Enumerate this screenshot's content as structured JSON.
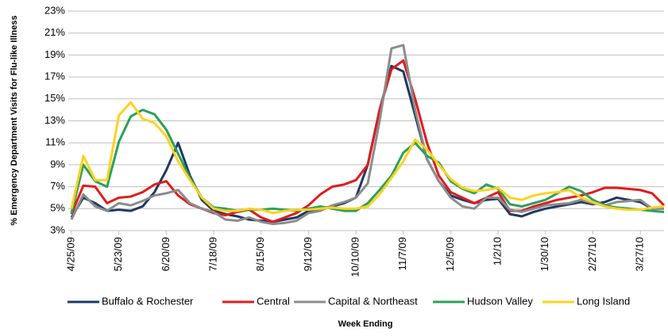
{
  "chart_data": {
    "type": "line",
    "y_label": "% Emergency Department Visits for Flu-like Illness",
    "x_label": "Week Ending",
    "categories": [
      "4/25/09",
      null,
      null,
      null,
      "5/23/09",
      null,
      null,
      null,
      "6/20/09",
      null,
      null,
      null,
      "7/18/09",
      null,
      null,
      null,
      "8/15/09",
      null,
      null,
      null,
      "9/12/09",
      null,
      null,
      null,
      "10/10/09",
      null,
      null,
      null,
      "11/7/09",
      null,
      null,
      null,
      "12/5/09",
      null,
      null,
      null,
      "1/2/10",
      null,
      null,
      null,
      "1/30/10",
      null,
      null,
      null,
      "2/27/10",
      null,
      null,
      null,
      "3/27/10",
      null,
      null
    ],
    "ylim": [
      3,
      23
    ],
    "yticks": [
      {
        "value": 3,
        "label": "3%"
      },
      {
        "value": 5,
        "label": "5%"
      },
      {
        "value": 7,
        "label": "7%"
      },
      {
        "value": 9,
        "label": "9%"
      },
      {
        "value": 11,
        "label": "11%"
      },
      {
        "value": 13,
        "label": "13%"
      },
      {
        "value": 15,
        "label": "15%"
      },
      {
        "value": 17,
        "label": "17%"
      },
      {
        "value": 19,
        "label": "19%"
      },
      {
        "value": 21,
        "label": "21%"
      },
      {
        "value": 23,
        "label": "23%"
      }
    ],
    "grid": true,
    "series": [
      {
        "name": "Buffalo & Rochester",
        "color": "#1f3864",
        "values": [
          4.2,
          6.0,
          5.5,
          4.8,
          4.9,
          4.8,
          5.2,
          6.5,
          8.5,
          11.0,
          8.0,
          5.8,
          4.8,
          4.5,
          4.3,
          4.0,
          3.9,
          3.8,
          4.0,
          4.2,
          4.8,
          5.0,
          5.2,
          5.5,
          6.0,
          9.0,
          14.0,
          18.0,
          17.5,
          13.5,
          9.5,
          7.5,
          6.2,
          5.8,
          5.5,
          5.8,
          5.9,
          4.5,
          4.3,
          4.7,
          5.0,
          5.2,
          5.4,
          5.6,
          5.4,
          5.6,
          6.0,
          5.8,
          5.6,
          5.0,
          5.0
        ]
      },
      {
        "name": "Central",
        "color": "#e31a1c",
        "values": [
          4.5,
          7.1,
          7.0,
          5.5,
          6.0,
          6.1,
          6.5,
          7.2,
          7.5,
          6.2,
          5.4,
          5.0,
          4.6,
          4.4,
          4.7,
          4.9,
          4.2,
          3.8,
          4.2,
          4.6,
          5.3,
          6.3,
          7.0,
          7.2,
          7.6,
          9.0,
          14.0,
          17.7,
          18.5,
          15.0,
          11.0,
          8.0,
          6.5,
          6.0,
          5.5,
          6.0,
          6.5,
          4.8,
          4.8,
          5.2,
          5.5,
          5.8,
          6.0,
          6.2,
          6.5,
          6.9,
          6.9,
          6.8,
          6.7,
          6.4,
          5.3
        ]
      },
      {
        "name": "Capital & Northeast",
        "color": "#8c8c8c",
        "values": [
          4.0,
          6.3,
          5.2,
          4.8,
          5.5,
          5.3,
          5.7,
          6.2,
          6.4,
          6.7,
          5.5,
          5.0,
          4.7,
          4.0,
          3.9,
          4.2,
          3.8,
          3.6,
          3.7,
          3.9,
          4.6,
          4.8,
          5.3,
          5.6,
          6.0,
          7.3,
          13.0,
          19.6,
          19.9,
          14.0,
          9.5,
          7.5,
          6.0,
          5.2,
          5.0,
          6.0,
          6.0,
          4.9,
          4.7,
          5.0,
          5.3,
          5.4,
          5.5,
          5.8,
          5.5,
          5.3,
          5.6,
          5.7,
          5.8,
          5.0,
          5.0
        ]
      },
      {
        "name": "Hudson Valley",
        "color": "#2ca05a",
        "values": [
          4.6,
          9.0,
          7.5,
          7.0,
          11.1,
          13.4,
          14.0,
          13.6,
          12.2,
          10.0,
          7.8,
          6.0,
          5.1,
          5.0,
          4.8,
          4.9,
          4.9,
          5.0,
          4.9,
          4.8,
          5.0,
          5.2,
          5.0,
          4.8,
          4.8,
          5.5,
          6.7,
          8.0,
          10.1,
          11.0,
          9.8,
          9.2,
          7.5,
          6.8,
          6.4,
          7.2,
          6.8,
          5.4,
          5.2,
          5.5,
          5.8,
          6.4,
          7.0,
          6.6,
          5.8,
          5.3,
          5.1,
          5.0,
          4.9,
          4.8,
          4.7
        ]
      },
      {
        "name": "Long Island",
        "color": "#ffd21f",
        "values": [
          5.0,
          9.8,
          7.6,
          7.6,
          13.5,
          14.7,
          13.2,
          12.8,
          11.6,
          9.3,
          7.6,
          6.0,
          5.0,
          4.8,
          4.8,
          5.0,
          4.9,
          4.6,
          4.8,
          4.9,
          4.9,
          5.0,
          5.1,
          5.0,
          5.0,
          5.2,
          6.3,
          7.8,
          9.3,
          11.3,
          10.4,
          9.0,
          7.7,
          6.9,
          6.6,
          6.7,
          6.9,
          6.0,
          5.8,
          6.2,
          6.4,
          6.5,
          6.7,
          6.0,
          5.6,
          5.2,
          5.0,
          4.9,
          4.9,
          5.1,
          5.2
        ]
      }
    ]
  }
}
